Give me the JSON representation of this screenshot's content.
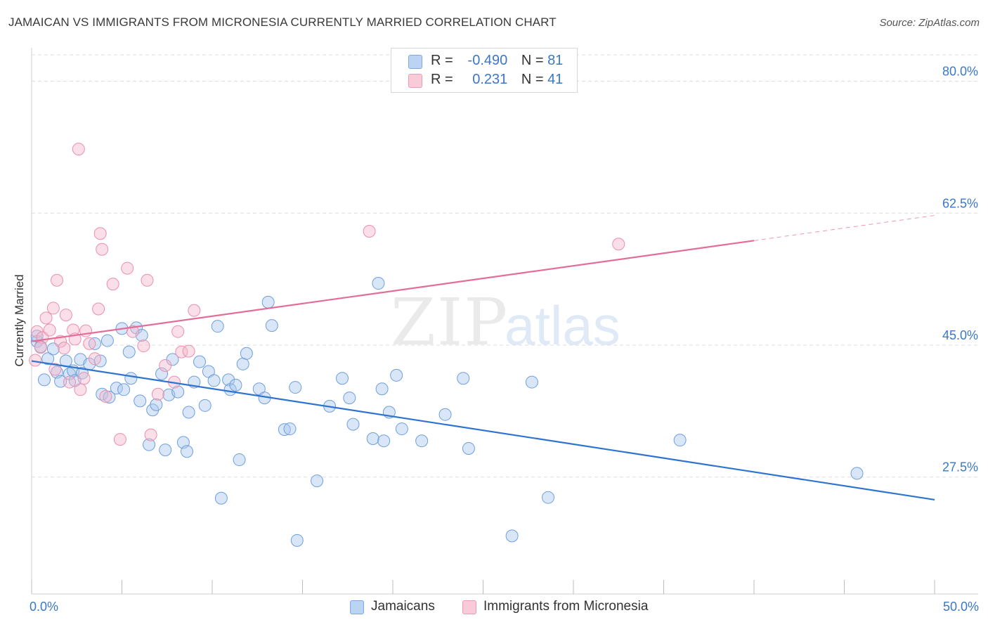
{
  "title": "JAMAICAN VS IMMIGRANTS FROM MICRONESIA CURRENTLY MARRIED CORRELATION CHART",
  "source": "Source: ZipAtlas.com",
  "legend_top": [
    {
      "r_label": "R =",
      "r_value": "-0.490",
      "n_label": "N =",
      "n_value": "81",
      "color": "#a9c7ee"
    },
    {
      "r_label": "R =",
      "r_value": "0.231",
      "n_label": "N =",
      "n_value": "41",
      "color": "#f5b8cb"
    }
  ],
  "legend_bottom": [
    {
      "label": "Jamaicans",
      "color": "#a9c7ee"
    },
    {
      "label": "Immigrants from Micronesia",
      "color": "#f5b8cb"
    }
  ],
  "watermark": {
    "zip": "ZIP",
    "atlas": "atlas"
  },
  "chart_data": {
    "type": "scatter",
    "title": "JAMAICAN VS IMMIGRANTS FROM MICRONESIA CURRENTLY MARRIED CORRELATION CHART",
    "xlabel": "",
    "ylabel": "Currently Married",
    "xlim": [
      0,
      50
    ],
    "ylim": [
      12,
      83.5
    ],
    "x_tick_labels": [
      "0.0%",
      "50.0%"
    ],
    "y_ticks": [
      27.5,
      45.0,
      62.5,
      80.0
    ],
    "y_tick_labels": [
      "27.5%",
      "45.0%",
      "62.5%",
      "80.0%"
    ],
    "grid": true,
    "legend": "top-center",
    "series": [
      {
        "name": "Jamaicans",
        "color": "#a9c7ee",
        "stroke": "#6f9fdc",
        "trend_color": "#2f73d0",
        "trend": {
          "x0": 0,
          "y0": 42.9,
          "x1": 50,
          "y1": 24.5,
          "solid_to": 50
        },
        "points": [
          [
            0.3,
            45.5
          ],
          [
            0.5,
            44.8
          ],
          [
            0.7,
            40.4
          ],
          [
            0.9,
            43.2
          ],
          [
            1.2,
            44.5
          ],
          [
            1.4,
            41.4
          ],
          [
            1.6,
            40.2
          ],
          [
            1.9,
            42.9
          ],
          [
            2.1,
            41.2
          ],
          [
            2.3,
            41.6
          ],
          [
            2.4,
            40.3
          ],
          [
            2.7,
            43.1
          ],
          [
            2.8,
            41.3
          ],
          [
            3.2,
            42.5
          ],
          [
            3.5,
            45.2
          ],
          [
            3.8,
            42.9
          ],
          [
            3.9,
            38.5
          ],
          [
            4.2,
            45.6
          ],
          [
            4.3,
            38.1
          ],
          [
            4.7,
            39.3
          ],
          [
            5.0,
            47.2
          ],
          [
            5.1,
            39.1
          ],
          [
            5.4,
            44.1
          ],
          [
            5.5,
            40.6
          ],
          [
            5.8,
            47.3
          ],
          [
            6.0,
            37.6
          ],
          [
            6.1,
            46.3
          ],
          [
            6.5,
            31.8
          ],
          [
            6.7,
            36.4
          ],
          [
            6.9,
            37.1
          ],
          [
            7.2,
            41.2
          ],
          [
            7.4,
            31.1
          ],
          [
            7.6,
            38.4
          ],
          [
            7.8,
            43.1
          ],
          [
            8.1,
            38.8
          ],
          [
            8.4,
            32.1
          ],
          [
            8.6,
            30.9
          ],
          [
            8.7,
            36.1
          ],
          [
            9.0,
            40.1
          ],
          [
            9.3,
            42.8
          ],
          [
            9.6,
            37.0
          ],
          [
            9.8,
            41.5
          ],
          [
            10.1,
            40.3
          ],
          [
            10.3,
            47.5
          ],
          [
            10.5,
            24.7
          ],
          [
            10.9,
            40.4
          ],
          [
            11.0,
            39.1
          ],
          [
            11.3,
            39.7
          ],
          [
            11.5,
            29.8
          ],
          [
            11.7,
            42.5
          ],
          [
            11.9,
            43.9
          ],
          [
            12.6,
            39.2
          ],
          [
            12.9,
            38.0
          ],
          [
            13.1,
            50.7
          ],
          [
            13.3,
            47.6
          ],
          [
            14.0,
            33.8
          ],
          [
            14.3,
            33.9
          ],
          [
            14.6,
            39.4
          ],
          [
            14.7,
            19.1
          ],
          [
            15.8,
            27.0
          ],
          [
            16.5,
            36.9
          ],
          [
            17.2,
            40.6
          ],
          [
            17.6,
            38.0
          ],
          [
            17.8,
            34.5
          ],
          [
            18.9,
            32.6
          ],
          [
            19.2,
            53.2
          ],
          [
            19.4,
            39.2
          ],
          [
            19.5,
            32.3
          ],
          [
            19.8,
            36.1
          ],
          [
            20.2,
            41.0
          ],
          [
            20.5,
            33.9
          ],
          [
            21.6,
            32.3
          ],
          [
            22.9,
            35.8
          ],
          [
            23.9,
            40.6
          ],
          [
            24.2,
            31.3
          ],
          [
            26.6,
            19.7
          ],
          [
            27.7,
            40.1
          ],
          [
            28.6,
            24.8
          ],
          [
            35.9,
            32.4
          ],
          [
            45.7,
            28.0
          ],
          [
            0.3,
            46.2
          ]
        ]
      },
      {
        "name": "Immigrants from Micronesia",
        "color": "#f5b8cb",
        "stroke": "#ea8fae",
        "trend_color": "#e36d98",
        "trend": {
          "x0": 0,
          "y0": 45.5,
          "x1": 50,
          "y1": 62.2,
          "solid_to": 40
        },
        "points": [
          [
            0.2,
            43.0
          ],
          [
            0.3,
            46.8
          ],
          [
            0.6,
            46.0
          ],
          [
            0.8,
            48.6
          ],
          [
            1.0,
            47.0
          ],
          [
            1.2,
            49.9
          ],
          [
            1.4,
            53.6
          ],
          [
            1.6,
            45.5
          ],
          [
            1.8,
            44.6
          ],
          [
            1.9,
            49.0
          ],
          [
            2.1,
            40.1
          ],
          [
            2.3,
            47.0
          ],
          [
            2.4,
            45.8
          ],
          [
            2.6,
            71.0
          ],
          [
            2.7,
            39.1
          ],
          [
            2.9,
            40.6
          ],
          [
            3.0,
            46.9
          ],
          [
            3.2,
            45.2
          ],
          [
            3.5,
            43.2
          ],
          [
            3.7,
            49.8
          ],
          [
            3.8,
            59.8
          ],
          [
            3.9,
            57.7
          ],
          [
            4.1,
            38.2
          ],
          [
            4.5,
            53.1
          ],
          [
            4.9,
            32.5
          ],
          [
            5.3,
            55.2
          ],
          [
            5.6,
            46.8
          ],
          [
            6.2,
            44.9
          ],
          [
            6.4,
            53.6
          ],
          [
            6.6,
            33.1
          ],
          [
            7.0,
            38.5
          ],
          [
            7.4,
            42.3
          ],
          [
            7.9,
            40.1
          ],
          [
            8.1,
            46.8
          ],
          [
            8.3,
            44.1
          ],
          [
            8.7,
            44.2
          ],
          [
            9.0,
            49.6
          ],
          [
            18.7,
            60.1
          ],
          [
            32.5,
            58.4
          ],
          [
            1.3,
            41.8
          ],
          [
            0.5,
            44.7
          ]
        ]
      }
    ]
  }
}
